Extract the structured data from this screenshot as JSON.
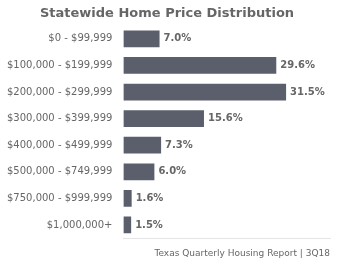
{
  "chart_data": {
    "type": "bar",
    "orientation": "horizontal",
    "title": "Statewide Home Price Distribution",
    "annotations": [
      "Texas Quarterly Housing Report | 3Q18"
    ],
    "categories": [
      "$0 - $99,999",
      "$100,000 - $199,999",
      "$200,000 - $299,999",
      "$300,000 - $399,999",
      "$400,000 - $499,999",
      "$500,000 - $749,999",
      "$750,000 - $999,999",
      "$1,000,000+"
    ],
    "values": [
      7.0,
      29.6,
      31.5,
      15.6,
      7.3,
      6.0,
      1.6,
      1.5
    ],
    "value_labels": [
      "7.0%",
      "29.6%",
      "31.5%",
      "15.6%",
      "7.3%",
      "6.0%",
      "1.6%",
      "1.5%"
    ],
    "data_labels": true,
    "color": "#5a5f6b",
    "xlim": [
      0,
      40
    ],
    "tick_labels": "y",
    "grid": false
  }
}
